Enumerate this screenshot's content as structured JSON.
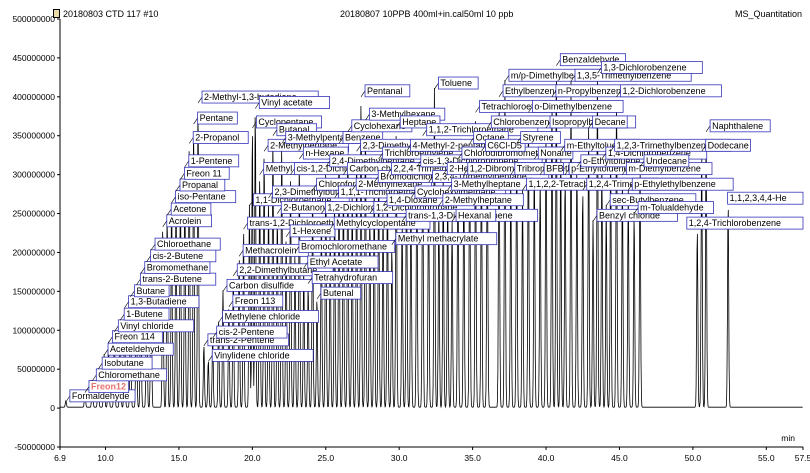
{
  "header": {
    "left_title": "20180803 CTD 117 #10",
    "center_title": "20180807 10PPB 400ml+in.cal50ml 10 ppb",
    "right_title": "MS_Quantitation"
  },
  "chart_data": {
    "type": "line",
    "title": "",
    "xlabel": "min",
    "ylabel": "",
    "xlim": [
      6.9,
      57.5
    ],
    "ylim": [
      -50000000,
      500000000
    ],
    "x_ticks": [
      "6.9",
      "10.0",
      "15.0",
      "20.0",
      "25.0",
      "30.0",
      "35.0",
      "40.0",
      "45.0",
      "50.0",
      "55.0",
      "57.5"
    ],
    "y_ticks": [
      "500000000",
      "450000000",
      "400000000",
      "350000000",
      "300000000",
      "250000000",
      "200000000",
      "150000000",
      "100000000",
      "50000000",
      "0",
      "-50000000"
    ],
    "highlight_color": "#e8746c",
    "label_box_color": "#3535b8",
    "peaks": [
      {
        "name": "Formaldehyde",
        "rt": 7.3,
        "height": 8000000
      },
      {
        "name": "Freon12",
        "rt": 8.6,
        "height": 20000000,
        "highlight": true
      },
      {
        "name": "Chloromethane",
        "rt": 9.1,
        "height": 35000000
      },
      {
        "name": "Isobutane",
        "rt": 9.5,
        "height": 50000000
      },
      {
        "name": "Aceteldehyde",
        "rt": 9.9,
        "height": 68000000
      },
      {
        "name": "Freon 114",
        "rt": 10.2,
        "height": 84000000
      },
      {
        "name": "Vinyl chloride",
        "rt": 10.6,
        "height": 98000000
      },
      {
        "name": "1-Butene",
        "rt": 11.0,
        "height": 113000000
      },
      {
        "name": "1,3-Butadiene",
        "rt": 11.3,
        "height": 129000000
      },
      {
        "name": "Butane",
        "rt": 11.7,
        "height": 143000000
      },
      {
        "name": "trans-2-Butene",
        "rt": 12.1,
        "height": 158000000
      },
      {
        "name": "Bromomethane",
        "rt": 12.4,
        "height": 173000000
      },
      {
        "name": "cis-2-Butene",
        "rt": 12.8,
        "height": 188000000
      },
      {
        "name": "Chloroethane",
        "rt": 13.1,
        "height": 203000000
      },
      {
        "name": "Acrolein",
        "rt": 13.9,
        "height": 233000000
      },
      {
        "name": "Acetone",
        "rt": 14.2,
        "height": 248000000
      },
      {
        "name": "iso-Pentane",
        "rt": 14.5,
        "height": 264000000
      },
      {
        "name": "Propanal",
        "rt": 14.8,
        "height": 279000000
      },
      {
        "name": "Freon 11",
        "rt": 15.1,
        "height": 294000000
      },
      {
        "name": "1-Pentene",
        "rt": 15.4,
        "height": 310000000
      },
      {
        "name": "2-Propanol",
        "rt": 15.7,
        "height": 340000000
      },
      {
        "name": "Pentane",
        "rt": 16.0,
        "height": 365000000
      },
      {
        "name": "2-Methyl-1,3-butadiene",
        "rt": 16.3,
        "height": 392000000
      },
      {
        "name": "trans-2-Pentene",
        "rt": 16.7,
        "height": 80000000
      },
      {
        "name": "Vinylidene chloride",
        "rt": 17.0,
        "height": 60000000
      },
      {
        "name": "cis-2-Pentene",
        "rt": 17.3,
        "height": 90000000
      },
      {
        "name": "Methylene chloride",
        "rt": 17.7,
        "height": 110000000
      },
      {
        "name": "Carbon disulfide",
        "rt": 18.0,
        "height": 150000000
      },
      {
        "name": "Freon 113",
        "rt": 18.4,
        "height": 130000000
      },
      {
        "name": "2,2-Dimethylbutane",
        "rt": 18.7,
        "height": 170000000
      },
      {
        "name": "Methacrolein",
        "rt": 19.1,
        "height": 195000000
      },
      {
        "name": "trans-1,2-Dichloroethene",
        "rt": 19.4,
        "height": 230000000
      },
      {
        "name": "1,1-Dichloroethane",
        "rt": 19.8,
        "height": 260000000
      },
      {
        "name": "Cyclopentane",
        "rt": 20.0,
        "height": 360000000
      },
      {
        "name": "Vinyl acetate",
        "rt": 20.2,
        "height": 385000000
      },
      {
        "name": "Methyl tert-butyl ether",
        "rt": 20.5,
        "height": 300000000
      },
      {
        "name": "2-Methylpentane",
        "rt": 20.8,
        "height": 330000000
      },
      {
        "name": "2,3-Dimethylbutane",
        "rt": 21.1,
        "height": 270000000
      },
      {
        "name": "Butanal",
        "rt": 21.4,
        "height": 350000000
      },
      {
        "name": "2-Butanone",
        "rt": 21.7,
        "height": 250000000
      },
      {
        "name": "3-Methylpentane",
        "rt": 22.0,
        "height": 340000000
      },
      {
        "name": "1-Hexene",
        "rt": 22.3,
        "height": 220000000
      },
      {
        "name": "cis-1,2-Dichloroethene",
        "rt": 22.6,
        "height": 300000000
      },
      {
        "name": "Bromochloromethane",
        "rt": 22.9,
        "height": 200000000
      },
      {
        "name": "n-Hexane",
        "rt": 23.2,
        "height": 320000000
      },
      {
        "name": "Ethyl Acetate",
        "rt": 23.5,
        "height": 180000000
      },
      {
        "name": "Tetrahydrofuran",
        "rt": 23.8,
        "height": 160000000
      },
      {
        "name": "Chloroform",
        "rt": 24.1,
        "height": 280000000
      },
      {
        "name": "Butenal",
        "rt": 24.4,
        "height": 140000000
      },
      {
        "name": "1,2-Dichloroethane",
        "rt": 24.7,
        "height": 250000000
      },
      {
        "name": "2,4-Dimethylpentane",
        "rt": 25.0,
        "height": 310000000
      },
      {
        "name": "Methylcyclopentane",
        "rt": 25.3,
        "height": 230000000
      },
      {
        "name": "1,1,1-Trichloroethane",
        "rt": 25.6,
        "height": 270000000
      },
      {
        "name": "Benzene",
        "rt": 25.9,
        "height": 340000000
      },
      {
        "name": "Carbon chloride",
        "rt": 26.2,
        "height": 300000000
      },
      {
        "name": "Cyclohexane",
        "rt": 26.5,
        "height": 355000000
      },
      {
        "name": "2-Methylhexane",
        "rt": 26.8,
        "height": 280000000
      },
      {
        "name": "2,3-Dimethylpentane",
        "rt": 27.1,
        "height": 330000000
      },
      {
        "name": "Pentanal",
        "rt": 27.4,
        "height": 400000000
      },
      {
        "name": "3-Methylhexane",
        "rt": 27.7,
        "height": 370000000
      },
      {
        "name": "1,2-Dichloropropane",
        "rt": 28.0,
        "height": 250000000
      },
      {
        "name": "Bromodichloromethane",
        "rt": 28.3,
        "height": 290000000
      },
      {
        "name": "Trichloroethylene",
        "rt": 28.6,
        "height": 320000000
      },
      {
        "name": "1,4-Dioxane",
        "rt": 28.9,
        "height": 260000000
      },
      {
        "name": "2,2,4-Trimethylpentane",
        "rt": 29.2,
        "height": 300000000
      },
      {
        "name": "Methyl methacrylate",
        "rt": 29.5,
        "height": 210000000
      },
      {
        "name": "Heptane",
        "rt": 29.8,
        "height": 360000000
      },
      {
        "name": "trans-1,3-Dichloropropene",
        "rt": 30.2,
        "height": 240000000
      },
      {
        "name": "4-Methyl-2-pentanone",
        "rt": 30.5,
        "height": 330000000
      },
      {
        "name": "Cyclohexylmethane",
        "rt": 30.8,
        "height": 270000000
      },
      {
        "name": "cis-1,3-Dichloropropene",
        "rt": 31.2,
        "height": 310000000
      },
      {
        "name": "1,1,2-Trichloroethane",
        "rt": 31.6,
        "height": 350000000
      },
      {
        "name": "2,3,4-Trimethylpentane",
        "rt": 32.0,
        "height": 290000000
      },
      {
        "name": "Toluene",
        "rt": 32.4,
        "height": 410000000
      },
      {
        "name": "2-Methylheptane",
        "rt": 32.7,
        "height": 260000000
      },
      {
        "name": "2-Hexanone",
        "rt": 33.0,
        "height": 300000000
      },
      {
        "name": "3-Methylheptane",
        "rt": 33.3,
        "height": 280000000
      },
      {
        "name": "Hexanal",
        "rt": 33.6,
        "height": 240000000
      },
      {
        "name": "Chlorodibromomethane",
        "rt": 34.0,
        "height": 320000000
      },
      {
        "name": "1,2-Dibromoethane",
        "rt": 34.4,
        "height": 300000000
      },
      {
        "name": "Octane",
        "rt": 34.8,
        "height": 340000000
      },
      {
        "name": "Tetrachloroethylene",
        "rt": 35.2,
        "height": 380000000
      },
      {
        "name": "C6Cl-D5",
        "rt": 35.6,
        "height": 330000000
      },
      {
        "name": "Chlorobenzene",
        "rt": 36.0,
        "height": 360000000
      },
      {
        "name": "Ethylbenzene",
        "rt": 36.8,
        "height": 400000000
      },
      {
        "name": "m/p-Dimethylbenzene",
        "rt": 37.2,
        "height": 420000000
      },
      {
        "name": "Tribromomethane",
        "rt": 37.6,
        "height": 300000000
      },
      {
        "name": "Styrene",
        "rt": 38.0,
        "height": 340000000
      },
      {
        "name": "1,1,2,2-Tetrachloroethane",
        "rt": 38.4,
        "height": 280000000
      },
      {
        "name": "o-Dimethylbenzene",
        "rt": 38.8,
        "height": 380000000
      },
      {
        "name": "Nonane",
        "rt": 39.2,
        "height": 320000000
      },
      {
        "name": "BFB",
        "rt": 39.6,
        "height": 300000000
      },
      {
        "name": "Isopropylbenzene",
        "rt": 40.0,
        "height": 360000000
      },
      {
        "name": "n-Propylbenzene",
        "rt": 40.4,
        "height": 400000000
      },
      {
        "name": "Benzaldehyde",
        "rt": 40.7,
        "height": 440000000
      },
      {
        "name": "m-Ethyltoluene",
        "rt": 41.0,
        "height": 330000000
      },
      {
        "name": "p-Ethyltoluene",
        "rt": 41.3,
        "height": 300000000
      },
      {
        "name": "1,3,5-Trimethylbenzene",
        "rt": 41.7,
        "height": 420000000
      },
      {
        "name": "o-Ethyltoluene",
        "rt": 42.1,
        "height": 310000000
      },
      {
        "name": "1,2,4-Trimethylbenzene",
        "rt": 42.5,
        "height": 280000000
      },
      {
        "name": "Decane",
        "rt": 42.9,
        "height": 360000000
      },
      {
        "name": "Benzyl chloride",
        "rt": 43.2,
        "height": 240000000
      },
      {
        "name": "1,3-Dichlorobenzene",
        "rt": 43.5,
        "height": 430000000
      },
      {
        "name": "1,4-Dichlorobenzene",
        "rt": 43.8,
        "height": 320000000
      },
      {
        "name": "sec-Butylbenzene",
        "rt": 44.1,
        "height": 260000000
      },
      {
        "name": "1,2,3-Trimethylbenzene",
        "rt": 44.4,
        "height": 330000000
      },
      {
        "name": "1,2-Dichlorobenzene",
        "rt": 44.8,
        "height": 400000000
      },
      {
        "name": "m-Diethylbenzene",
        "rt": 45.2,
        "height": 300000000
      },
      {
        "name": "p-Ethylethylbenzene",
        "rt": 45.6,
        "height": 280000000
      },
      {
        "name": "m-Tolualdehyde",
        "rt": 46.0,
        "height": 250000000
      },
      {
        "name": "Undecane",
        "rt": 46.4,
        "height": 310000000
      },
      {
        "name": "1,2,4-Trichlorobenzene",
        "rt": 50.3,
        "height": 230000000
      },
      {
        "name": "Dodecane",
        "rt": 50.6,
        "height": 330000000
      },
      {
        "name": "Naphthalene",
        "rt": 50.9,
        "height": 355000000
      },
      {
        "name": "1,1,2,3,4,4-He",
        "rt": 52.4,
        "height": 262000000
      }
    ]
  }
}
